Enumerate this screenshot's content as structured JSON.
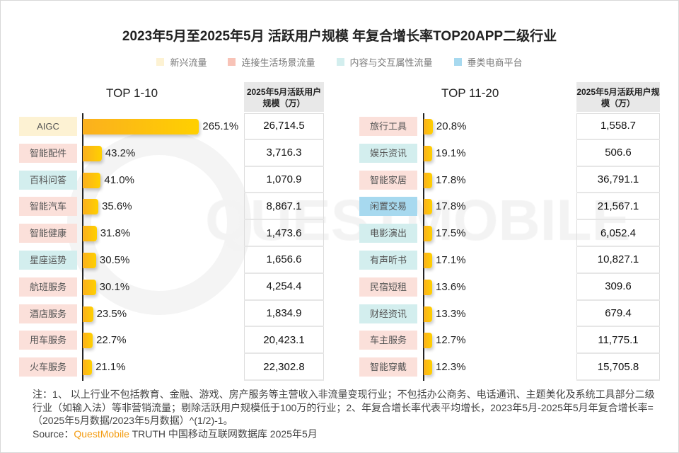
{
  "title": "2023年5月至2025年5月 活跃用户规模 年复合增长率TOP20APP二级行业",
  "legend": [
    {
      "label": "新兴流量",
      "color": "#fdf2d3"
    },
    {
      "label": "连接生活场景流量",
      "color": "#f8c3b7"
    },
    {
      "label": "内容与交互属性流量",
      "color": "#d3eeee"
    },
    {
      "label": "垂类电商平台",
      "color": "#a7d9ef"
    }
  ],
  "watermark": "QUESTMOBILE",
  "chart_data": [
    {
      "type": "bar",
      "title": "TOP 1-10",
      "table_header": "2025年5月活跃用户规模（万）",
      "unit": "%",
      "categories": [
        "AIGC",
        "智能配件",
        "百科问答",
        "智能汽车",
        "智能健康",
        "星座运势",
        "航班服务",
        "酒店服务",
        "用车服务",
        "火车服务"
      ],
      "groups": [
        0,
        1,
        2,
        1,
        1,
        2,
        1,
        1,
        1,
        1
      ],
      "values": [
        265.1,
        43.2,
        41.0,
        35.6,
        31.8,
        30.5,
        30.1,
        23.5,
        22.7,
        21.1
      ],
      "value_labels": [
        "265.1%",
        "43.2%",
        "41.0%",
        "35.6%",
        "31.8%",
        "30.5%",
        "30.1%",
        "23.5%",
        "22.7%",
        "21.1%"
      ],
      "users": [
        "26,714.5",
        "3,716.3",
        "1,070.9",
        "8,867.1",
        "1,473.6",
        "1,656.6",
        "4,254.4",
        "1,834.9",
        "20,423.1",
        "22,302.8"
      ]
    },
    {
      "type": "bar",
      "title": "TOP 11-20",
      "table_header": "2025年5月活跃用户规模（万）",
      "unit": "%",
      "categories": [
        "旅行工具",
        "娱乐资讯",
        "智能家居",
        "闲置交易",
        "电影演出",
        "有声听书",
        "民宿短租",
        "财经资讯",
        "车主服务",
        "智能穿戴"
      ],
      "groups": [
        1,
        2,
        1,
        3,
        2,
        2,
        1,
        2,
        1,
        1
      ],
      "values": [
        20.8,
        19.1,
        17.8,
        17.8,
        17.5,
        17.1,
        13.6,
        13.3,
        12.7,
        12.3
      ],
      "value_labels": [
        "20.8%",
        "19.1%",
        "17.8%",
        "17.8%",
        "17.5%",
        "17.1%",
        "13.6%",
        "13.3%",
        "12.7%",
        "12.3%"
      ],
      "users": [
        "1,558.7",
        "506.6",
        "36,791.1",
        "21,567.1",
        "6,052.4",
        "10,827.1",
        "309.6",
        "679.4",
        "11,775.1",
        "15,705.8"
      ]
    }
  ],
  "note": {
    "text": "注：1、 以上行业不包括教育、金融、游戏、房产服务等主营收入非流量变现行业；不包括办公商务、电话通讯、主题美化及系统工具部分二级行业（如输入法）等非营销流量；剔除活跃用户规模低于100万的行业；2、年复合增长率代表平均增长，2023年5月-2025年5月年复合增长率=（2025年5月数据/2023年5月数据）^(1/2)-1。",
    "source_prefix": "Source：",
    "source_brand": "QuestMobile",
    "source_rest": " TRUTH 中国移动互联网数据库 2025年5月"
  }
}
